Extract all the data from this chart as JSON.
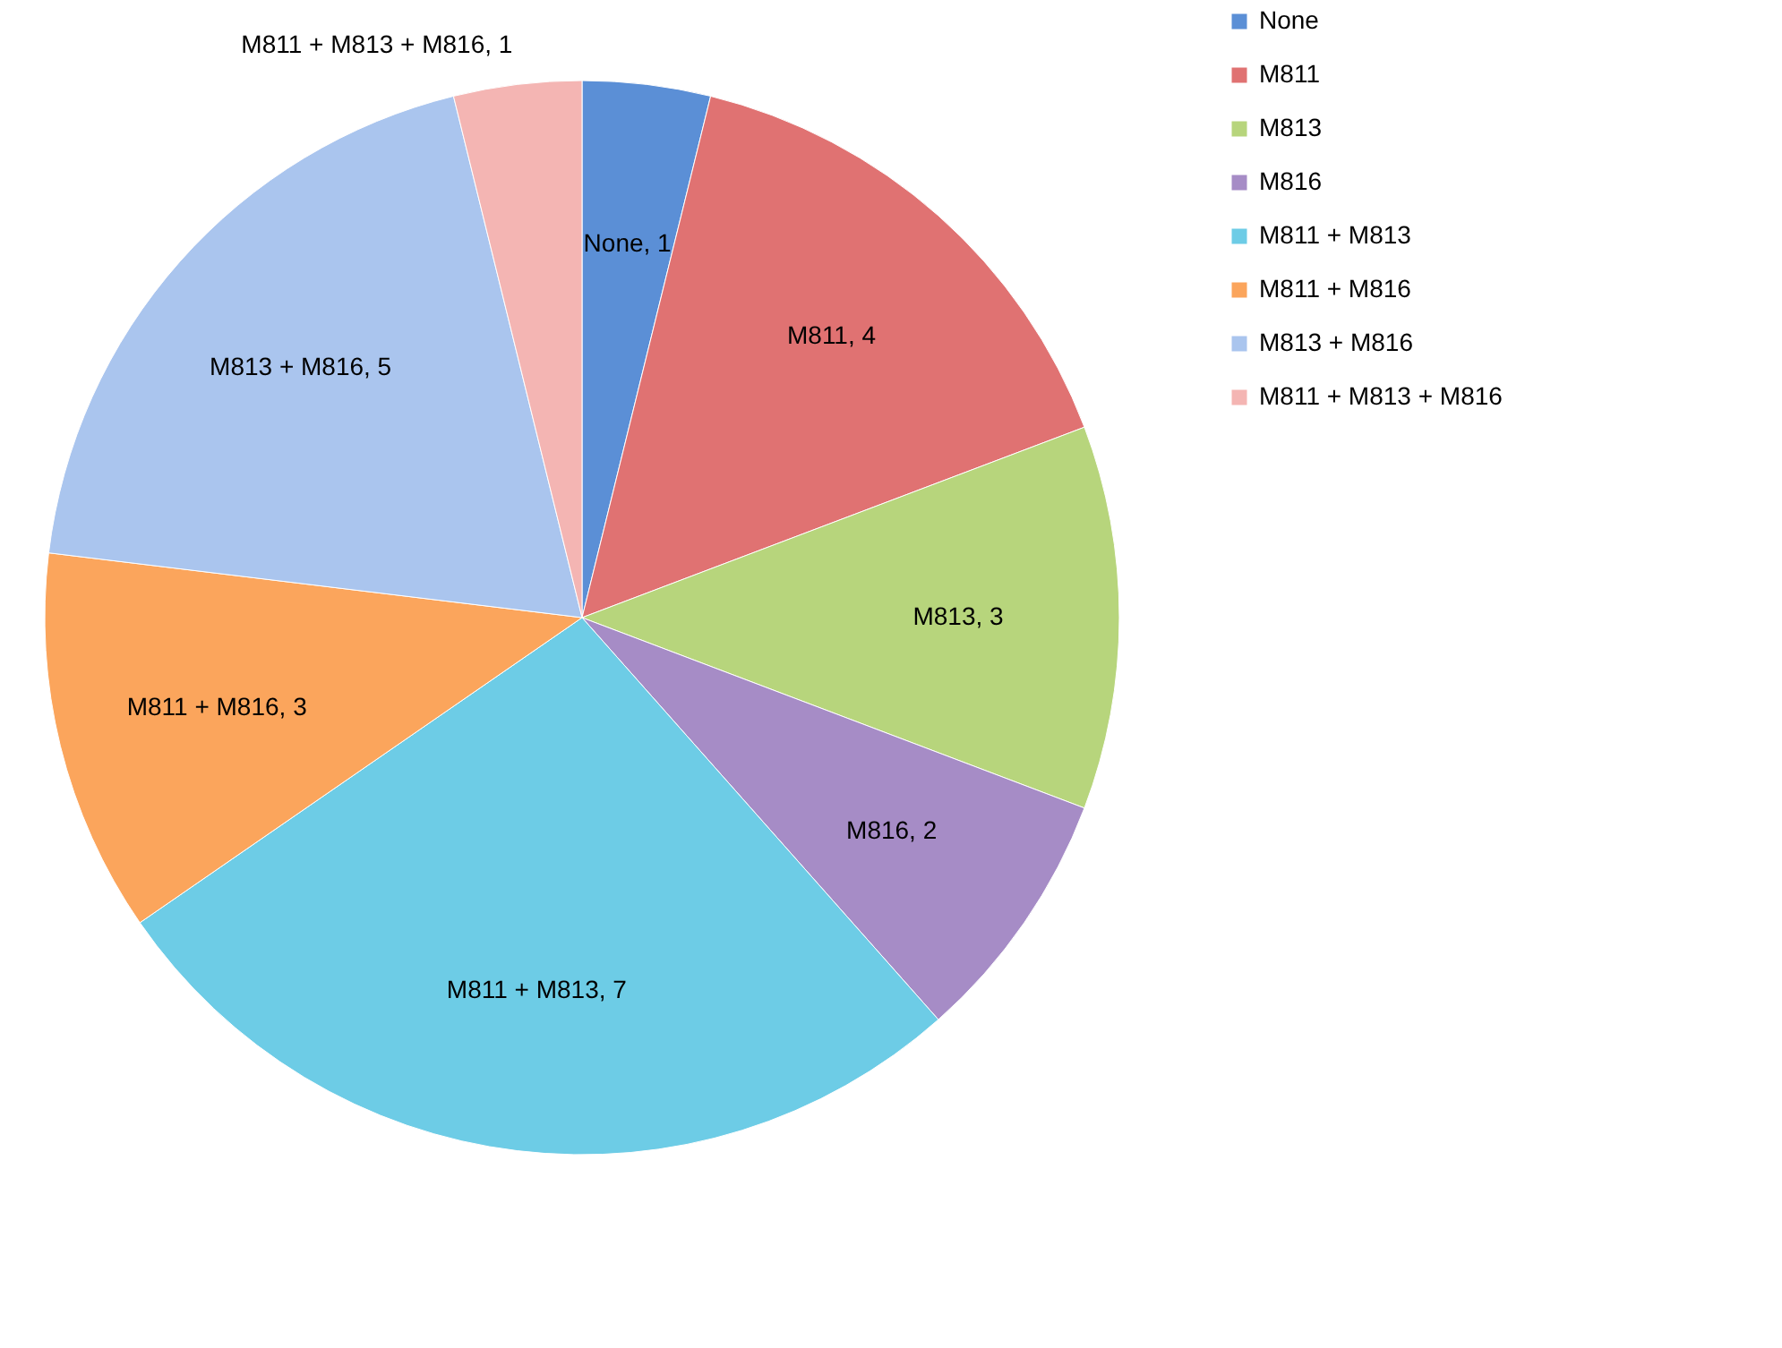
{
  "chart_data": {
    "type": "pie",
    "categories": [
      "None",
      "M811",
      "M813",
      "M816",
      "M811 + M813",
      "M811 + M816",
      "M813 + M816",
      "M811 + M813 + M816"
    ],
    "values": [
      1,
      4,
      3,
      2,
      7,
      3,
      5,
      1
    ],
    "colors": [
      "#5b8fd6",
      "#e07272",
      "#b7d57c",
      "#a68cc6",
      "#6dcce6",
      "#fba55c",
      "#aac5ee",
      "#f4b5b3"
    ],
    "value_labels": [
      "None, 1",
      "M811, 4",
      "M813, 3",
      "M816, 2",
      "M811 + M813, 7",
      "M811 + M816, 3",
      "M813 + M816, 5",
      "M811 + M813 + M816, 1"
    ],
    "legend": "right"
  }
}
